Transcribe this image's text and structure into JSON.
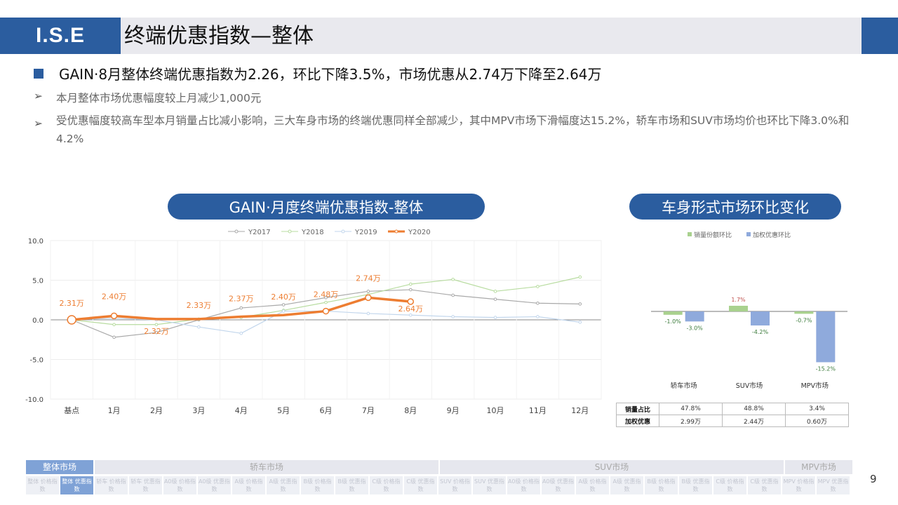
{
  "header": {
    "logo": "I.S.E",
    "title": "终端优惠指数—整体"
  },
  "headline": "GAIN·8月整体终端优惠指数为2.26，环比下降3.5%，市场优惠从2.74万下降至2.64万",
  "bullets": [
    "本月整体市场优惠幅度较上月减少1,000元",
    "受优惠幅度较高车型本月销量占比减小影响，三大车身市场的终端优惠同样全部减少，其中MPV市场下滑幅度达15.2%，轿车市场和SUV市场均价也环比下降3.0%和4.2%"
  ],
  "pill_left": "GAIN·月度终端优惠指数-整体",
  "pill_right": "车身形式市场环比变化",
  "chart_data": [
    {
      "type": "line",
      "categories": [
        "基点",
        "1月",
        "2月",
        "3月",
        "4月",
        "5月",
        "6月",
        "7月",
        "8月",
        "9月",
        "10月",
        "11月",
        "12月"
      ],
      "ylim": [
        -10,
        10
      ],
      "yticks": [
        "10.0",
        "5.0",
        "0.0",
        "-5.0",
        "-10.0"
      ],
      "legend_position": "top",
      "series": [
        {
          "name": "Y2017",
          "color": "#a9a9a9",
          "values": [
            0,
            -2.2,
            -1.6,
            0,
            1.5,
            1.9,
            2.8,
            3.6,
            3.8,
            3.1,
            2.6,
            2.1,
            2.0
          ]
        },
        {
          "name": "Y2018",
          "color": "#b8dca0",
          "values": [
            0,
            -0.6,
            -0.6,
            0.1,
            0.3,
            1.2,
            2.2,
            3.2,
            4.5,
            5.1,
            3.6,
            4.2,
            5.4
          ]
        },
        {
          "name": "Y2019",
          "color": "#c2d6ec",
          "values": [
            0,
            0.2,
            0,
            -0.9,
            -1.7,
            1.1,
            1.1,
            0.8,
            0.6,
            0.4,
            0.3,
            0.4,
            -0.3
          ]
        },
        {
          "name": "Y2020",
          "color": "#ed7d31",
          "values": [
            0,
            0.5,
            0.1,
            0.1,
            0.4,
            0.6,
            1.1,
            2.8,
            2.3,
            null,
            null,
            null,
            null
          ]
        }
      ],
      "data_labels": [
        "2.31万",
        "2.40万",
        "2.32万",
        "2.33万",
        "2.37万",
        "2.40万",
        "2.48万",
        "2.74万",
        "2.64万"
      ]
    },
    {
      "type": "bar",
      "categories": [
        "轿车市场",
        "SUV市场",
        "MPV市场"
      ],
      "ylim": [
        -17,
        4
      ],
      "legend_position": "top",
      "series": [
        {
          "name": "销量份额环比",
          "color": "#a9d18e",
          "values": [
            -1.0,
            1.7,
            -0.7
          ],
          "labels": [
            "-1.0%",
            "1.7%",
            "-0.7%"
          ]
        },
        {
          "name": "加权优惠环比",
          "color": "#8faadc",
          "values": [
            -3.0,
            -4.2,
            -15.2
          ],
          "labels": [
            "-3.0%",
            "-4.2%",
            "-15.2%"
          ]
        }
      ]
    }
  ],
  "stats_table": {
    "rows": [
      {
        "label": "销量占比",
        "values": [
          "47.8%",
          "48.8%",
          "3.4%"
        ]
      },
      {
        "label": "加权优惠",
        "values": [
          "2.99万",
          "2.44万",
          "0.60万"
        ]
      }
    ]
  },
  "nav": {
    "top": [
      "整体市场",
      "轿车市场",
      "SUV市场",
      "MPV市场"
    ],
    "sub": [
      "整体 价格指数",
      "整体 优惠指数",
      "轿车 价格指数",
      "轿车 优惠指数",
      "A0级 价格指数",
      "A0级 优惠指数",
      "A级 价格指数",
      "A级 优惠指数",
      "B级 价格指数",
      "B级 优惠指数",
      "C级 价格指数",
      "C级 优惠指数",
      "SUV 价格指数",
      "SUV 优惠指数",
      "A0级 价格指数",
      "A0级 优惠指数",
      "A级 价格指数",
      "A级 优惠指数",
      "B级 价格指数",
      "B级 优惠指数",
      "C级 价格指数",
      "C级 优惠指数",
      "MPV 价格指数",
      "MPV 优惠指数"
    ]
  },
  "page_number": "9"
}
